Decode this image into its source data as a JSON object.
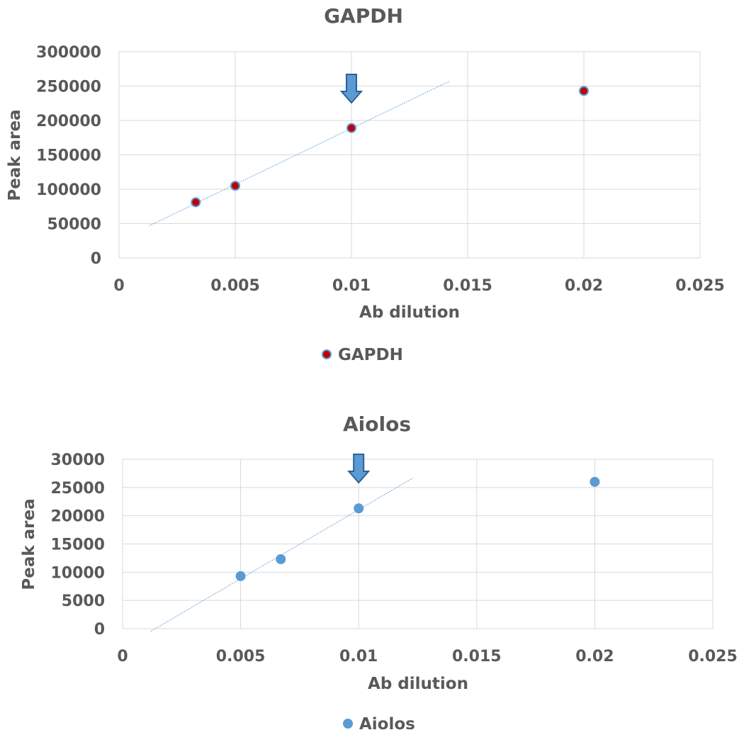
{
  "chart_data": [
    {
      "type": "scatter",
      "title": "GAPDH",
      "xlabel": "Ab dilution",
      "ylabel": "Peak area",
      "xlim": [
        0,
        0.025
      ],
      "ylim": [
        0,
        300000
      ],
      "x_ticks": [
        "0",
        "0.005",
        "0.01",
        "0.015",
        "0.02",
        "0.025"
      ],
      "y_ticks": [
        "0",
        "50000",
        "100000",
        "150000",
        "200000",
        "250000",
        "300000"
      ],
      "grid": true,
      "legend_position": "bottom",
      "series": [
        {
          "name": "GAPDH",
          "marker_fill": "#c00000",
          "marker_edge": "#5b9bd5",
          "points": [
            {
              "x": 0.0033,
              "y": 81000
            },
            {
              "x": 0.005,
              "y": 105000
            },
            {
              "x": 0.01,
              "y": 189000
            },
            {
              "x": 0.02,
              "y": 243000
            }
          ]
        }
      ],
      "trendline": {
        "color": "#5b9bd5",
        "x_start": 0.0013,
        "x_end": 0.0142
      },
      "annotation_arrow_x": 0.01
    },
    {
      "type": "scatter",
      "title": "Aiolos",
      "xlabel": "Ab dilution",
      "ylabel": "Peak area",
      "xlim": [
        0,
        0.025
      ],
      "ylim": [
        0,
        30000
      ],
      "x_ticks": [
        "0",
        "0.005",
        "0.01",
        "0.015",
        "0.02",
        "0.025"
      ],
      "y_ticks": [
        "0",
        "5000",
        "10000",
        "15000",
        "20000",
        "25000",
        "30000"
      ],
      "grid": true,
      "legend_position": "bottom",
      "series": [
        {
          "name": "Aiolos",
          "marker_fill": "#5b9bd5",
          "marker_edge": "#5b9bd5",
          "points": [
            {
              "x": 0.005,
              "y": 9300
            },
            {
              "x": 0.0067,
              "y": 12300
            },
            {
              "x": 0.01,
              "y": 21300
            },
            {
              "x": 0.02,
              "y": 26000
            }
          ]
        }
      ],
      "trendline": {
        "color": "#5b9bd5",
        "x_start": 0.0012,
        "x_end": 0.0123
      },
      "annotation_arrow_x": 0.01
    }
  ]
}
